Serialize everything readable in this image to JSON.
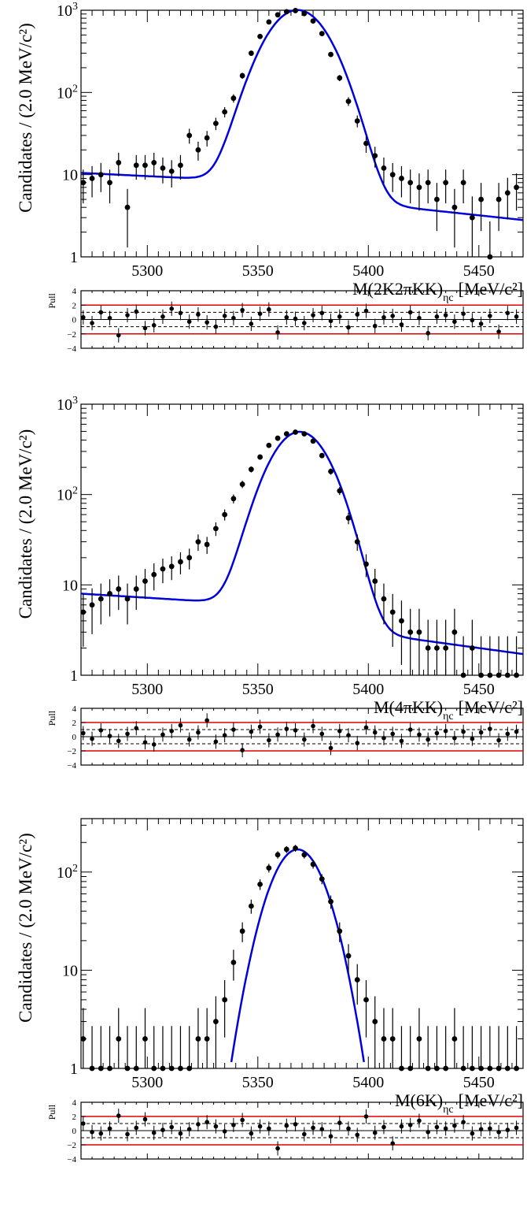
{
  "chart_data": [
    {
      "type": "scatter",
      "scale": "log",
      "xlim": [
        5270,
        5470
      ],
      "ylim": [
        1,
        1000
      ],
      "ylabel": "Candidates / (2.0 MeV/c²)",
      "xlabel_main": "M(2K2πKK)",
      "xlabel_sub": "ηc",
      "xlabel_units": "[MeV/c²]",
      "x_ticks": [
        "5300",
        "5350",
        "5400",
        "5450"
      ],
      "y_ticks": [
        "1",
        "10",
        "10²",
        "10³"
      ],
      "fit": {
        "color": "#0000dd",
        "peak": 1000,
        "mean": 5368,
        "sigma": 11.5,
        "tail_amp": 10.5,
        "tail_slope": 0.012
      },
      "x": [
        5271,
        5275,
        5279,
        5283,
        5287,
        5291,
        5295,
        5299,
        5303,
        5307,
        5311,
        5315,
        5319,
        5323,
        5327,
        5331,
        5335,
        5339,
        5343,
        5347,
        5351,
        5355,
        5359,
        5363,
        5367,
        5371,
        5375,
        5379,
        5383,
        5387,
        5391,
        5395,
        5399,
        5403,
        5407,
        5411,
        5415,
        5419,
        5423,
        5427,
        5431,
        5435,
        5439,
        5443,
        5447,
        5451,
        5455,
        5459,
        5463,
        5467
      ],
      "y": [
        8,
        9,
        10,
        8,
        14,
        4,
        13,
        13,
        14,
        12,
        11,
        13,
        30,
        20,
        28,
        42,
        58,
        85,
        160,
        300,
        480,
        720,
        880,
        960,
        990,
        910,
        740,
        520,
        290,
        150,
        78,
        45,
        24,
        17,
        12,
        10,
        9,
        8,
        7,
        8,
        5,
        8,
        4,
        8,
        3,
        5,
        1,
        5,
        6,
        7
      ],
      "pull": {
        "ylabel": "Pull",
        "yticks": [
          "4",
          "2",
          "0",
          "−2",
          "−4"
        ],
        "values": [
          0.3,
          -0.5,
          1.0,
          0.2,
          -2.2,
          0.6,
          1.1,
          -1.2,
          -0.8,
          0.4,
          1.5,
          0.9,
          -0.3,
          0.7,
          -0.4,
          -1.0,
          0.5,
          0.2,
          1.3,
          -0.6,
          0.8,
          1.4,
          -1.8,
          0.3,
          0.1,
          -0.5,
          0.6,
          0.9,
          -0.2,
          0.4,
          -1.1,
          0.7,
          1.2,
          -0.9,
          0.3,
          0.5,
          -0.7,
          1.0,
          0.2,
          -1.9,
          0.4,
          0.6,
          -0.3,
          0.8,
          -0.1,
          -0.6,
          0.5,
          -1.7,
          0.9,
          0.4
        ]
      }
    },
    {
      "type": "scatter",
      "scale": "log",
      "xlim": [
        5270,
        5470
      ],
      "ylim": [
        1,
        1000
      ],
      "ylabel": "Candidates / (2.0 MeV/c²)",
      "xlabel_main": "M(4πKK)",
      "xlabel_sub": "ηc",
      "xlabel_units": "[MeV/c²]",
      "x_ticks": [
        "5300",
        "5350",
        "5400",
        "5450"
      ],
      "y_ticks": [
        "1",
        "10",
        "10²",
        "10³"
      ],
      "fit": {
        "color": "#0000dd",
        "peak": 490,
        "mean": 5369,
        "sigma": 11.0,
        "tail_amp": 8.0,
        "tail_slope": 0.014
      },
      "x": [
        5271,
        5275,
        5279,
        5283,
        5287,
        5291,
        5295,
        5299,
        5303,
        5307,
        5311,
        5315,
        5319,
        5323,
        5327,
        5331,
        5335,
        5339,
        5343,
        5347,
        5351,
        5355,
        5359,
        5363,
        5367,
        5371,
        5375,
        5379,
        5383,
        5387,
        5391,
        5395,
        5399,
        5403,
        5407,
        5411,
        5415,
        5419,
        5423,
        5427,
        5431,
        5435,
        5439,
        5443,
        5447,
        5451,
        5455,
        5459,
        5463,
        5467
      ],
      "y": [
        5,
        6,
        7,
        8,
        9,
        7,
        9,
        11,
        13,
        15,
        16,
        18,
        20,
        30,
        28,
        42,
        60,
        90,
        130,
        190,
        260,
        350,
        420,
        470,
        490,
        470,
        390,
        270,
        180,
        110,
        55,
        30,
        17,
        11,
        7,
        5,
        4,
        3,
        3,
        2,
        2,
        2,
        3,
        1,
        2,
        1,
        1,
        1,
        1,
        1
      ],
      "pull": {
        "ylabel": "Pull",
        "yticks": [
          "4",
          "2",
          "0",
          "−2",
          "−4"
        ],
        "values": [
          0.5,
          -0.3,
          0.9,
          0.1,
          -0.6,
          0.4,
          1.2,
          -0.8,
          -1.1,
          0.3,
          0.8,
          1.6,
          -0.4,
          0.6,
          2.3,
          -0.7,
          0.2,
          1.0,
          -1.9,
          0.7,
          1.4,
          -0.5,
          0.3,
          1.1,
          0.9,
          -0.4,
          1.5,
          0.4,
          -1.6,
          0.8,
          0.2,
          -0.9,
          1.3,
          0.6,
          -0.2,
          0.4,
          -0.6,
          1.0,
          0.3,
          -0.4,
          0.5,
          0.8,
          -0.2,
          0.7,
          -0.3,
          0.6,
          1.1,
          -0.5,
          0.4,
          0.7
        ]
      }
    },
    {
      "type": "scatter",
      "scale": "log",
      "xlim": [
        5270,
        5470
      ],
      "ylim": [
        1,
        350
      ],
      "ylabel": "Candidates / (2.0 MeV/c²)",
      "xlabel_main": "M(6K)",
      "xlabel_sub": "ηc",
      "xlabel_units": "[MeV/c²]",
      "x_ticks": [
        "5300",
        "5350",
        "5400",
        "5450"
      ],
      "y_ticks": [
        "1",
        "10",
        "10²"
      ],
      "fit": {
        "color": "#0000dd",
        "peak": 170,
        "mean": 5368,
        "sigma": 9.5,
        "tail_amp": 0,
        "tail_slope": 0
      },
      "x": [
        5271,
        5275,
        5279,
        5283,
        5287,
        5291,
        5295,
        5299,
        5303,
        5307,
        5311,
        5315,
        5319,
        5323,
        5327,
        5331,
        5335,
        5339,
        5343,
        5347,
        5351,
        5355,
        5359,
        5363,
        5367,
        5371,
        5375,
        5379,
        5383,
        5387,
        5391,
        5395,
        5399,
        5403,
        5407,
        5411,
        5415,
        5419,
        5423,
        5427,
        5431,
        5435,
        5439,
        5443,
        5447,
        5451,
        5455,
        5459,
        5463,
        5467
      ],
      "y": [
        2,
        1,
        1,
        1,
        2,
        1,
        1,
        2,
        1,
        1,
        1,
        1,
        1,
        2,
        2,
        3,
        5,
        12,
        25,
        45,
        75,
        110,
        150,
        170,
        175,
        150,
        120,
        85,
        50,
        25,
        14,
        8,
        5,
        3,
        2,
        2,
        1,
        1,
        2,
        1,
        1,
        1,
        2,
        1,
        1,
        1,
        1,
        1,
        1,
        1
      ],
      "pull": {
        "ylabel": "Pull",
        "yticks": [
          "4",
          "2",
          "0",
          "−2",
          "−4"
        ],
        "values": [
          1.0,
          -0.2,
          -0.4,
          0.3,
          2.1,
          -0.5,
          0.4,
          1.6,
          -0.3,
          0.1,
          0.5,
          -0.4,
          0.2,
          0.9,
          1.2,
          0.6,
          -0.1,
          0.8,
          1.5,
          -0.4,
          0.6,
          0.3,
          -2.5,
          0.7,
          0.9,
          -0.5,
          0.4,
          0.2,
          -0.8,
          1.1,
          0.3,
          -0.6,
          2.0,
          -0.3,
          0.5,
          -1.8,
          0.6,
          0.8,
          1.4,
          -0.2,
          0.5,
          0.3,
          0.7,
          1.2,
          -0.4,
          0.2,
          0.3,
          -0.2,
          0.1,
          0.4
        ]
      }
    }
  ]
}
